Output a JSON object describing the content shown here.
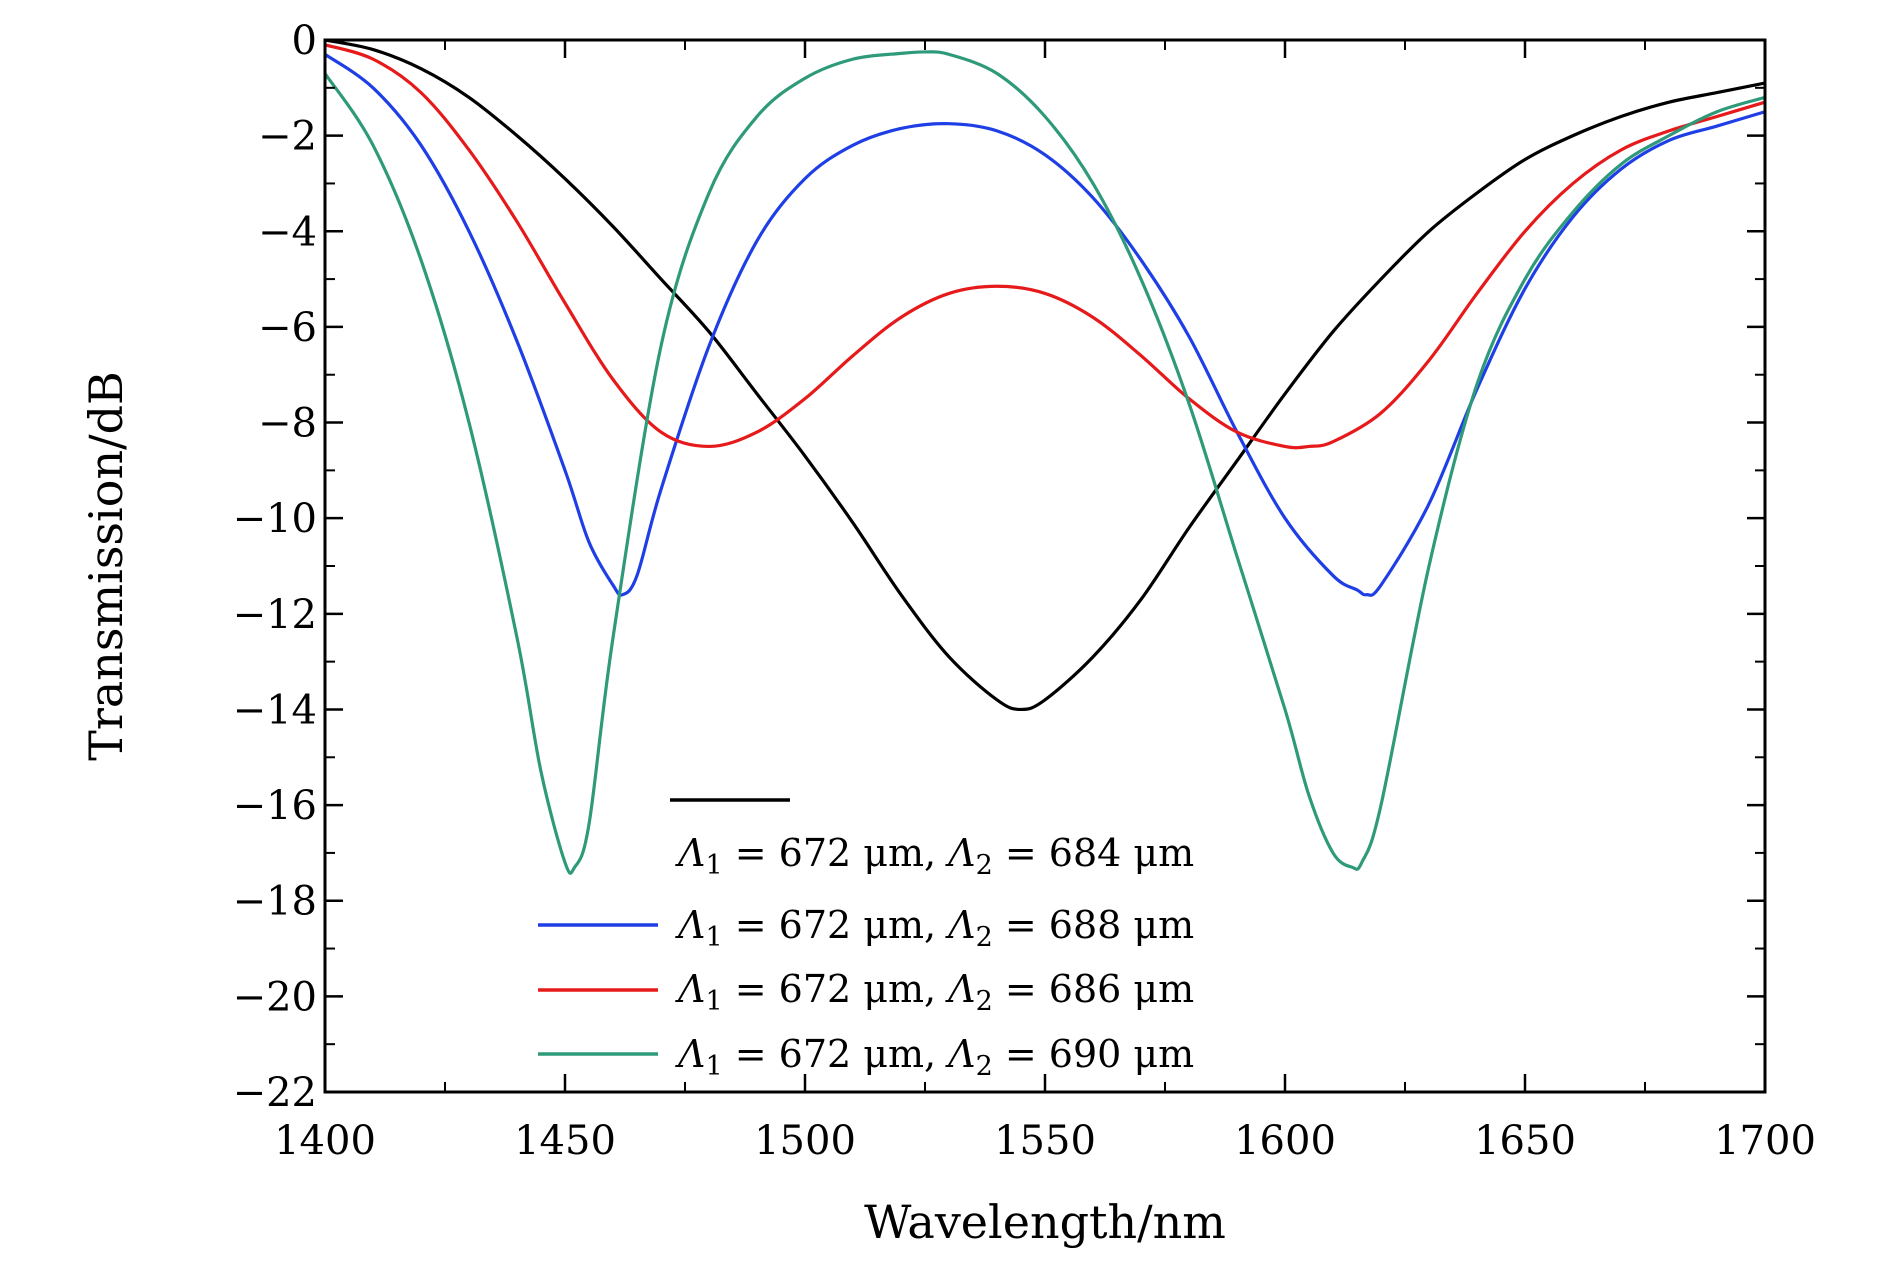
{
  "chart_data": {
    "type": "line",
    "xlabel": "Wavelength/nm",
    "ylabel": "Transmission/dB",
    "xlim": [
      1400,
      1700
    ],
    "ylim": [
      -22,
      0
    ],
    "xticks": [
      1400,
      1450,
      1500,
      1550,
      1600,
      1650,
      1700
    ],
    "xtick_labels": [
      "1400",
      "1450",
      "1500",
      "1550",
      "1600",
      "1650",
      "1700"
    ],
    "yticks": [
      0,
      -2,
      -4,
      -6,
      -8,
      -10,
      -12,
      -14,
      -16,
      -18,
      -20,
      -22
    ],
    "ytick_labels": [
      "0",
      "−2",
      "−4",
      "−6",
      "−8",
      "−10",
      "−12",
      "−14",
      "−16",
      "−18",
      "−20",
      "−22"
    ],
    "grid": false,
    "legend_position": "bottom-center",
    "series": [
      {
        "name": "Λ1 = 672 μm, Λ2 = 684 μm",
        "color": "#000000",
        "x": [
          1400,
          1410,
          1420,
          1430,
          1440,
          1450,
          1460,
          1470,
          1480,
          1490,
          1500,
          1510,
          1520,
          1530,
          1540,
          1545,
          1550,
          1560,
          1570,
          1580,
          1590,
          1600,
          1610,
          1620,
          1630,
          1640,
          1650,
          1660,
          1670,
          1680,
          1690,
          1700
        ],
        "y": [
          0,
          -0.2,
          -0.6,
          -1.2,
          -2.0,
          -2.9,
          -3.9,
          -5.0,
          -6.1,
          -7.4,
          -8.7,
          -10.1,
          -11.6,
          -12.9,
          -13.8,
          -14.0,
          -13.8,
          -12.9,
          -11.7,
          -10.2,
          -8.8,
          -7.4,
          -6.1,
          -5.0,
          -4.0,
          -3.2,
          -2.5,
          -2.0,
          -1.6,
          -1.3,
          -1.1,
          -0.9
        ]
      },
      {
        "name": "Λ1 = 672 μm, Λ2 = 688 μm",
        "color": "#1f3fe6",
        "x": [
          1400,
          1410,
          1420,
          1430,
          1440,
          1450,
          1455,
          1460,
          1462,
          1465,
          1470,
          1480,
          1490,
          1500,
          1510,
          1520,
          1530,
          1540,
          1550,
          1560,
          1570,
          1580,
          1590,
          1600,
          1610,
          1615,
          1617,
          1620,
          1630,
          1640,
          1650,
          1660,
          1670,
          1680,
          1690,
          1700
        ],
        "y": [
          -0.3,
          -1.0,
          -2.2,
          -4.0,
          -6.3,
          -9.0,
          -10.5,
          -11.4,
          -11.6,
          -11.2,
          -9.4,
          -6.4,
          -4.2,
          -2.9,
          -2.2,
          -1.85,
          -1.75,
          -1.9,
          -2.4,
          -3.3,
          -4.6,
          -6.2,
          -8.2,
          -10.0,
          -11.2,
          -11.5,
          -11.6,
          -11.4,
          -9.7,
          -7.3,
          -5.2,
          -3.7,
          -2.7,
          -2.1,
          -1.8,
          -1.5
        ]
      },
      {
        "name": "Λ1 = 672 μm, Λ2 = 686 μm",
        "color": "#e61a1a",
        "x": [
          1400,
          1410,
          1420,
          1430,
          1440,
          1450,
          1460,
          1470,
          1480,
          1490,
          1500,
          1510,
          1520,
          1530,
          1540,
          1550,
          1560,
          1570,
          1580,
          1590,
          1600,
          1605,
          1610,
          1620,
          1630,
          1640,
          1650,
          1660,
          1670,
          1680,
          1690,
          1700
        ],
        "y": [
          -0.1,
          -0.4,
          -1.1,
          -2.3,
          -3.8,
          -5.5,
          -7.1,
          -8.2,
          -8.5,
          -8.2,
          -7.5,
          -6.6,
          -5.8,
          -5.3,
          -5.15,
          -5.3,
          -5.8,
          -6.6,
          -7.5,
          -8.2,
          -8.5,
          -8.5,
          -8.4,
          -7.8,
          -6.7,
          -5.3,
          -4.0,
          -3.0,
          -2.3,
          -1.9,
          -1.6,
          -1.3
        ]
      },
      {
        "name": "Λ1 = 672 μm, Λ2 = 690 μm",
        "color": "#2e9a7a",
        "x": [
          1400,
          1410,
          1420,
          1430,
          1440,
          1445,
          1450,
          1452,
          1455,
          1460,
          1470,
          1480,
          1490,
          1500,
          1510,
          1520,
          1525,
          1530,
          1540,
          1550,
          1560,
          1570,
          1580,
          1590,
          1600,
          1605,
          1610,
          1614,
          1616,
          1620,
          1630,
          1640,
          1650,
          1660,
          1670,
          1680,
          1690,
          1700
        ],
        "y": [
          -0.7,
          -2.2,
          -4.6,
          -8.0,
          -12.5,
          -15.3,
          -17.2,
          -17.3,
          -16.4,
          -12.5,
          -6.4,
          -3.2,
          -1.6,
          -0.8,
          -0.4,
          -0.28,
          -0.25,
          -0.3,
          -0.7,
          -1.6,
          -3.0,
          -5.0,
          -7.6,
          -10.8,
          -14.0,
          -15.8,
          -17.0,
          -17.3,
          -17.2,
          -16.0,
          -11.0,
          -7.2,
          -5.0,
          -3.6,
          -2.6,
          -2.0,
          -1.5,
          -1.2
        ]
      }
    ],
    "legend": {
      "entries": [
        {
          "prefix": "Λ",
          "sub1": "1",
          "mid": " = 672 μm, Λ",
          "sub2": "2",
          "suffix": " = 684 μm"
        },
        {
          "prefix": "Λ",
          "sub1": "1",
          "mid": " = 672 μm, Λ",
          "sub2": "2",
          "suffix": " = 688 μm"
        },
        {
          "prefix": "Λ",
          "sub1": "1",
          "mid": " = 672 μm, Λ",
          "sub2": "2",
          "suffix": " = 686 μm"
        },
        {
          "prefix": "Λ",
          "sub1": "1",
          "mid": " = 672 μm, Λ",
          "sub2": "2",
          "suffix": " = 690 μm"
        }
      ]
    }
  }
}
